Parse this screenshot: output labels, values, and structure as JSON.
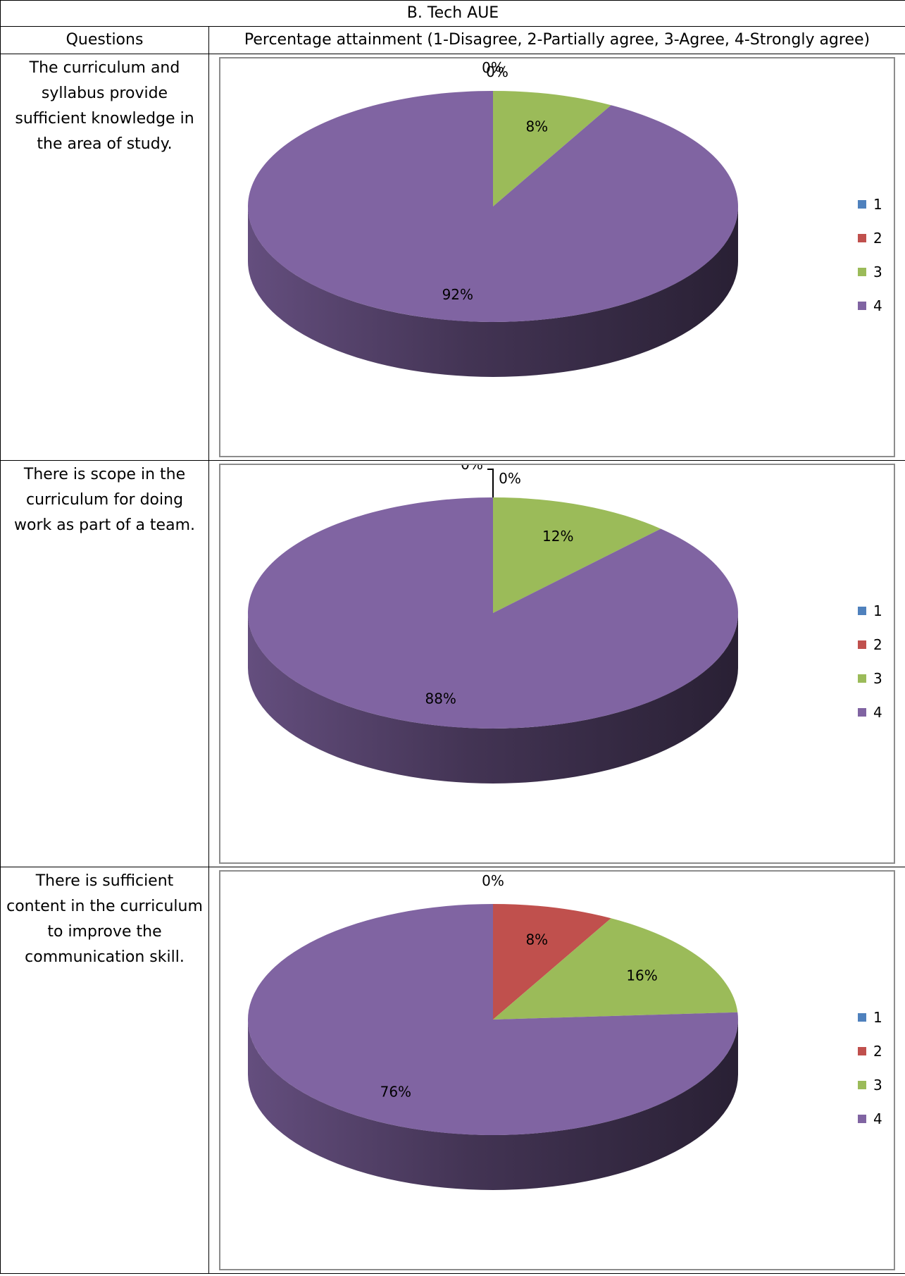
{
  "table": {
    "title": "B. Tech AUE",
    "col_questions": "Questions",
    "col_attainment": "Percentage attainment (1-Disagree, 2-Partially agree, 3-Agree, 4-Strongly agree)"
  },
  "rows": [
    {
      "question": "The curriculum and syllabus provide sufficient knowledge in the area of study."
    },
    {
      "question": "There is scope in the curriculum for doing work as part of a team."
    },
    {
      "question": "There is sufficient content in the curriculum to improve the communication skill."
    }
  ],
  "colors": {
    "1": "#4f81bd",
    "2": "#c0504d",
    "3": "#9bbb59",
    "4": "#8064a2"
  },
  "chart_data": [
    {
      "type": "pie",
      "title": "",
      "categories": [
        "1",
        "2",
        "3",
        "4"
      ],
      "values": [
        0,
        0,
        8,
        92
      ],
      "labels": [
        "0%",
        "0%",
        "8%",
        "92%"
      ],
      "legend": "right",
      "style": "3d"
    },
    {
      "type": "pie",
      "title": "",
      "categories": [
        "1",
        "2",
        "3",
        "4"
      ],
      "values": [
        0,
        0,
        12,
        88
      ],
      "labels": [
        "0%",
        "0%",
        "12%",
        "88%"
      ],
      "legend": "right",
      "style": "3d"
    },
    {
      "type": "pie",
      "title": "",
      "categories": [
        "1",
        "2",
        "3",
        "4"
      ],
      "values": [
        0,
        8,
        16,
        76
      ],
      "labels": [
        "0%",
        "8%",
        "16%",
        "76%"
      ],
      "legend": "right",
      "style": "3d"
    }
  ]
}
